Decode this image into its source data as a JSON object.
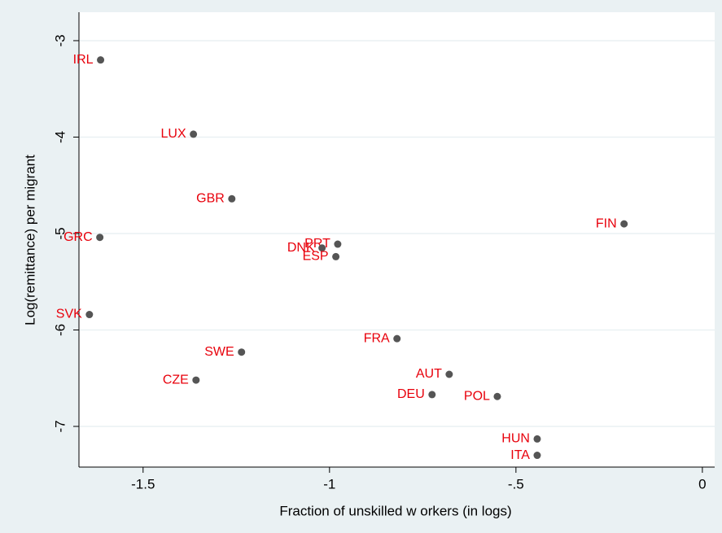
{
  "chart_data": {
    "type": "scatter",
    "x_label": "Fraction of unskilled w orkers (in logs)",
    "y_label": "Log(remittance) per migrant",
    "labels": [
      "IRL",
      "LUX",
      "GBR",
      "GRC",
      "SVK",
      "SWE",
      "CZE",
      "PRT",
      "DNK",
      "ESP",
      "FRA",
      "AUT",
      "DEU",
      "POL",
      "HUN",
      "FIN",
      "ITA"
    ],
    "x": [
      -1.614,
      -1.365,
      -1.262,
      -1.616,
      -1.644,
      -1.236,
      -1.358,
      -0.978,
      -1.02,
      -0.983,
      -0.819,
      -0.679,
      -0.725,
      -0.55,
      -0.443,
      -0.21,
      -0.443
    ],
    "values": [
      -3.2,
      -3.97,
      -4.64,
      -5.04,
      -5.84,
      -6.23,
      -6.52,
      -5.11,
      -5.15,
      -5.24,
      -6.09,
      -6.46,
      -6.67,
      -6.69,
      -7.13,
      -4.9,
      -7.3
    ],
    "color": "#555555",
    "label_color": "#e8000b",
    "xlim": [
      -1.672,
      0.033
    ],
    "ylim": [
      -7.422,
      -2.705
    ],
    "xticks": [
      {
        "value": -1.5,
        "label": "-1.5"
      },
      -1,
      {
        "value": -0.5,
        "label": "-.5"
      },
      0
    ],
    "yticks": [
      -3,
      -4,
      -5,
      -6,
      -7
    ],
    "grid": true
  }
}
